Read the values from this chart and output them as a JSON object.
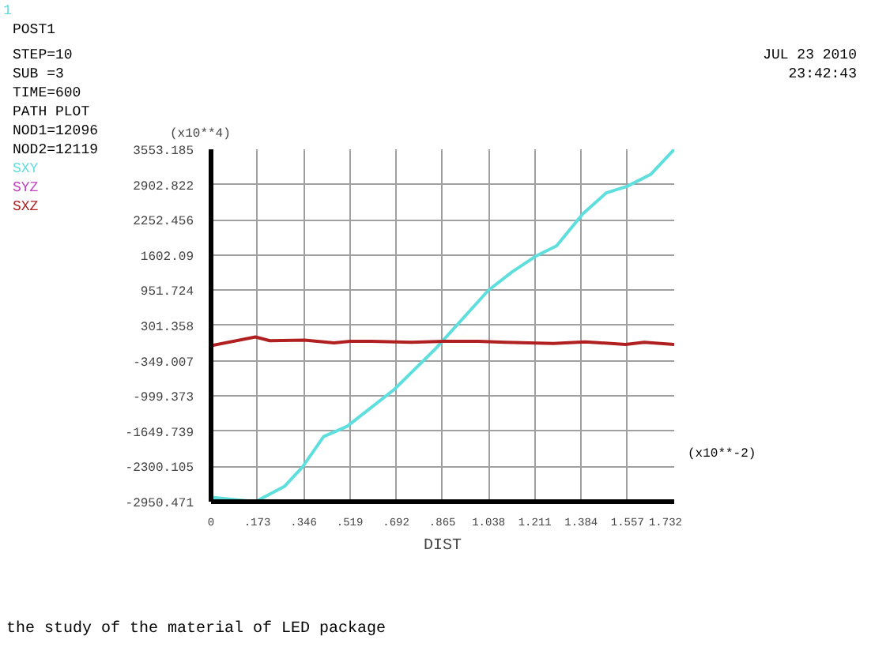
{
  "chart_data": {
    "type": "line",
    "xlabel": "DIST",
    "annotations": [
      "1",
      "POST1",
      "STEP=10",
      "SUB =3",
      "TIME=600",
      "PATH PLOT",
      "NOD1=12096",
      "NOD2=12119",
      "JUL 23 2010",
      "23:42:43",
      "the study of the material of LED package",
      "(x10**4)",
      "(x10**-2)"
    ],
    "series": [
      {
        "name": "SXY",
        "color": "#5fdede",
        "x": [
          0,
          0.166,
          0.274,
          0.342,
          0.421,
          0.509,
          0.685,
          0.841,
          1.037,
          1.126,
          1.214,
          1.292,
          1.39,
          1.478,
          1.556,
          1.644,
          1.732
        ],
        "values": [
          -2870,
          -2950,
          -2670,
          -2310,
          -1750,
          -1560,
          -880,
          -120,
          950,
          1290,
          1580,
          1770,
          2360,
          2750,
          2870,
          3090,
          3553
        ]
      },
      {
        "name": "SYZ",
        "color": "#c040c0"
      },
      {
        "name": "SXZ",
        "color": "#b02020",
        "x": [
          0,
          0.166,
          0.22,
          0.35,
          0.46,
          0.52,
          0.6,
          0.75,
          0.87,
          1.0,
          1.1,
          1.28,
          1.4,
          1.55,
          1.62,
          1.732
        ],
        "values": [
          -70,
          90,
          20,
          30,
          -20,
          10,
          10,
          -10,
          10,
          10,
          -10,
          -30,
          0,
          -50,
          -10,
          -50
        ]
      }
    ],
    "xlim": [
      0,
      1.732
    ],
    "ylim": [
      -2950.471,
      3553.185
    ],
    "xticks": [
      0,
      {
        "value": 0.173,
        "label": ".173"
      },
      {
        "value": 0.346,
        "label": ".346"
      },
      {
        "value": 0.519,
        "label": ".519"
      },
      {
        "value": 0.692,
        "label": ".692"
      },
      {
        "value": 0.865,
        "label": ".865"
      },
      1.038,
      1.211,
      1.384,
      1.557,
      1.732
    ],
    "yticks": [
      -2950.471,
      -2300.105,
      -1649.739,
      -999.373,
      -349.007,
      301.358,
      951.724,
      1602.09,
      2252.456,
      2902.822,
      3553.185
    ],
    "grid": true,
    "line_style": "solid"
  }
}
